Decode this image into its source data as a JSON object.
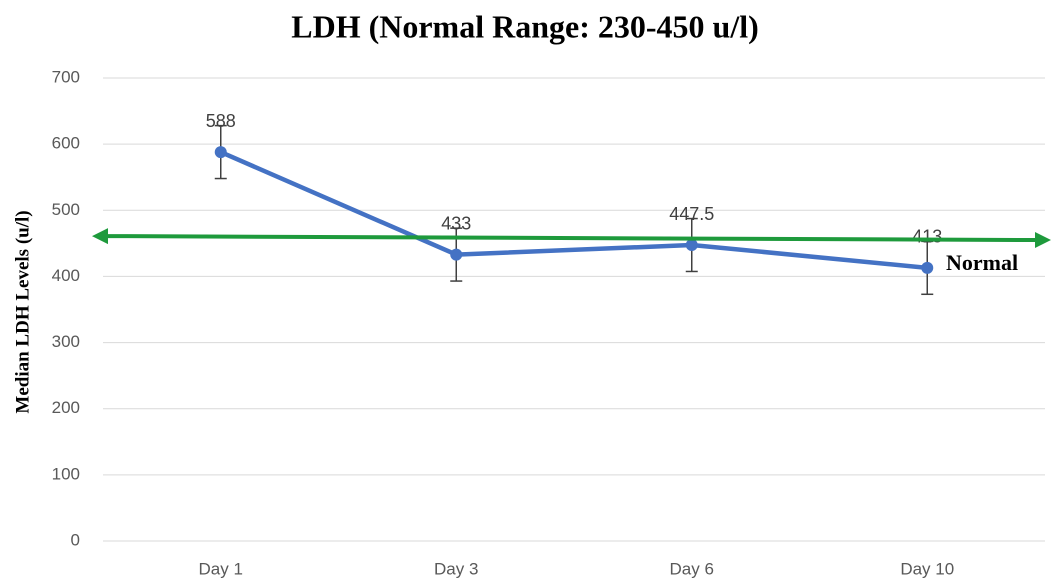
{
  "chart_data": {
    "type": "line",
    "title": "LDH (Normal Range: 230-450 u/l)",
    "y_label": "Median LDH Levels (u/l)",
    "categories": [
      "Day 1",
      "Day 3",
      "Day 6",
      "Day 10"
    ],
    "values": [
      588,
      433,
      447.5,
      413
    ],
    "errors": [
      40,
      40,
      40,
      40
    ],
    "color": "#4472c4",
    "ylim": [
      0,
      700
    ],
    "yticks": [
      0,
      100,
      200,
      300,
      400,
      500,
      600,
      700
    ],
    "grid": true,
    "normal_line": {
      "label": "Normal",
      "values": [
        461,
        455
      ],
      "color": "#1e9a3c"
    }
  }
}
